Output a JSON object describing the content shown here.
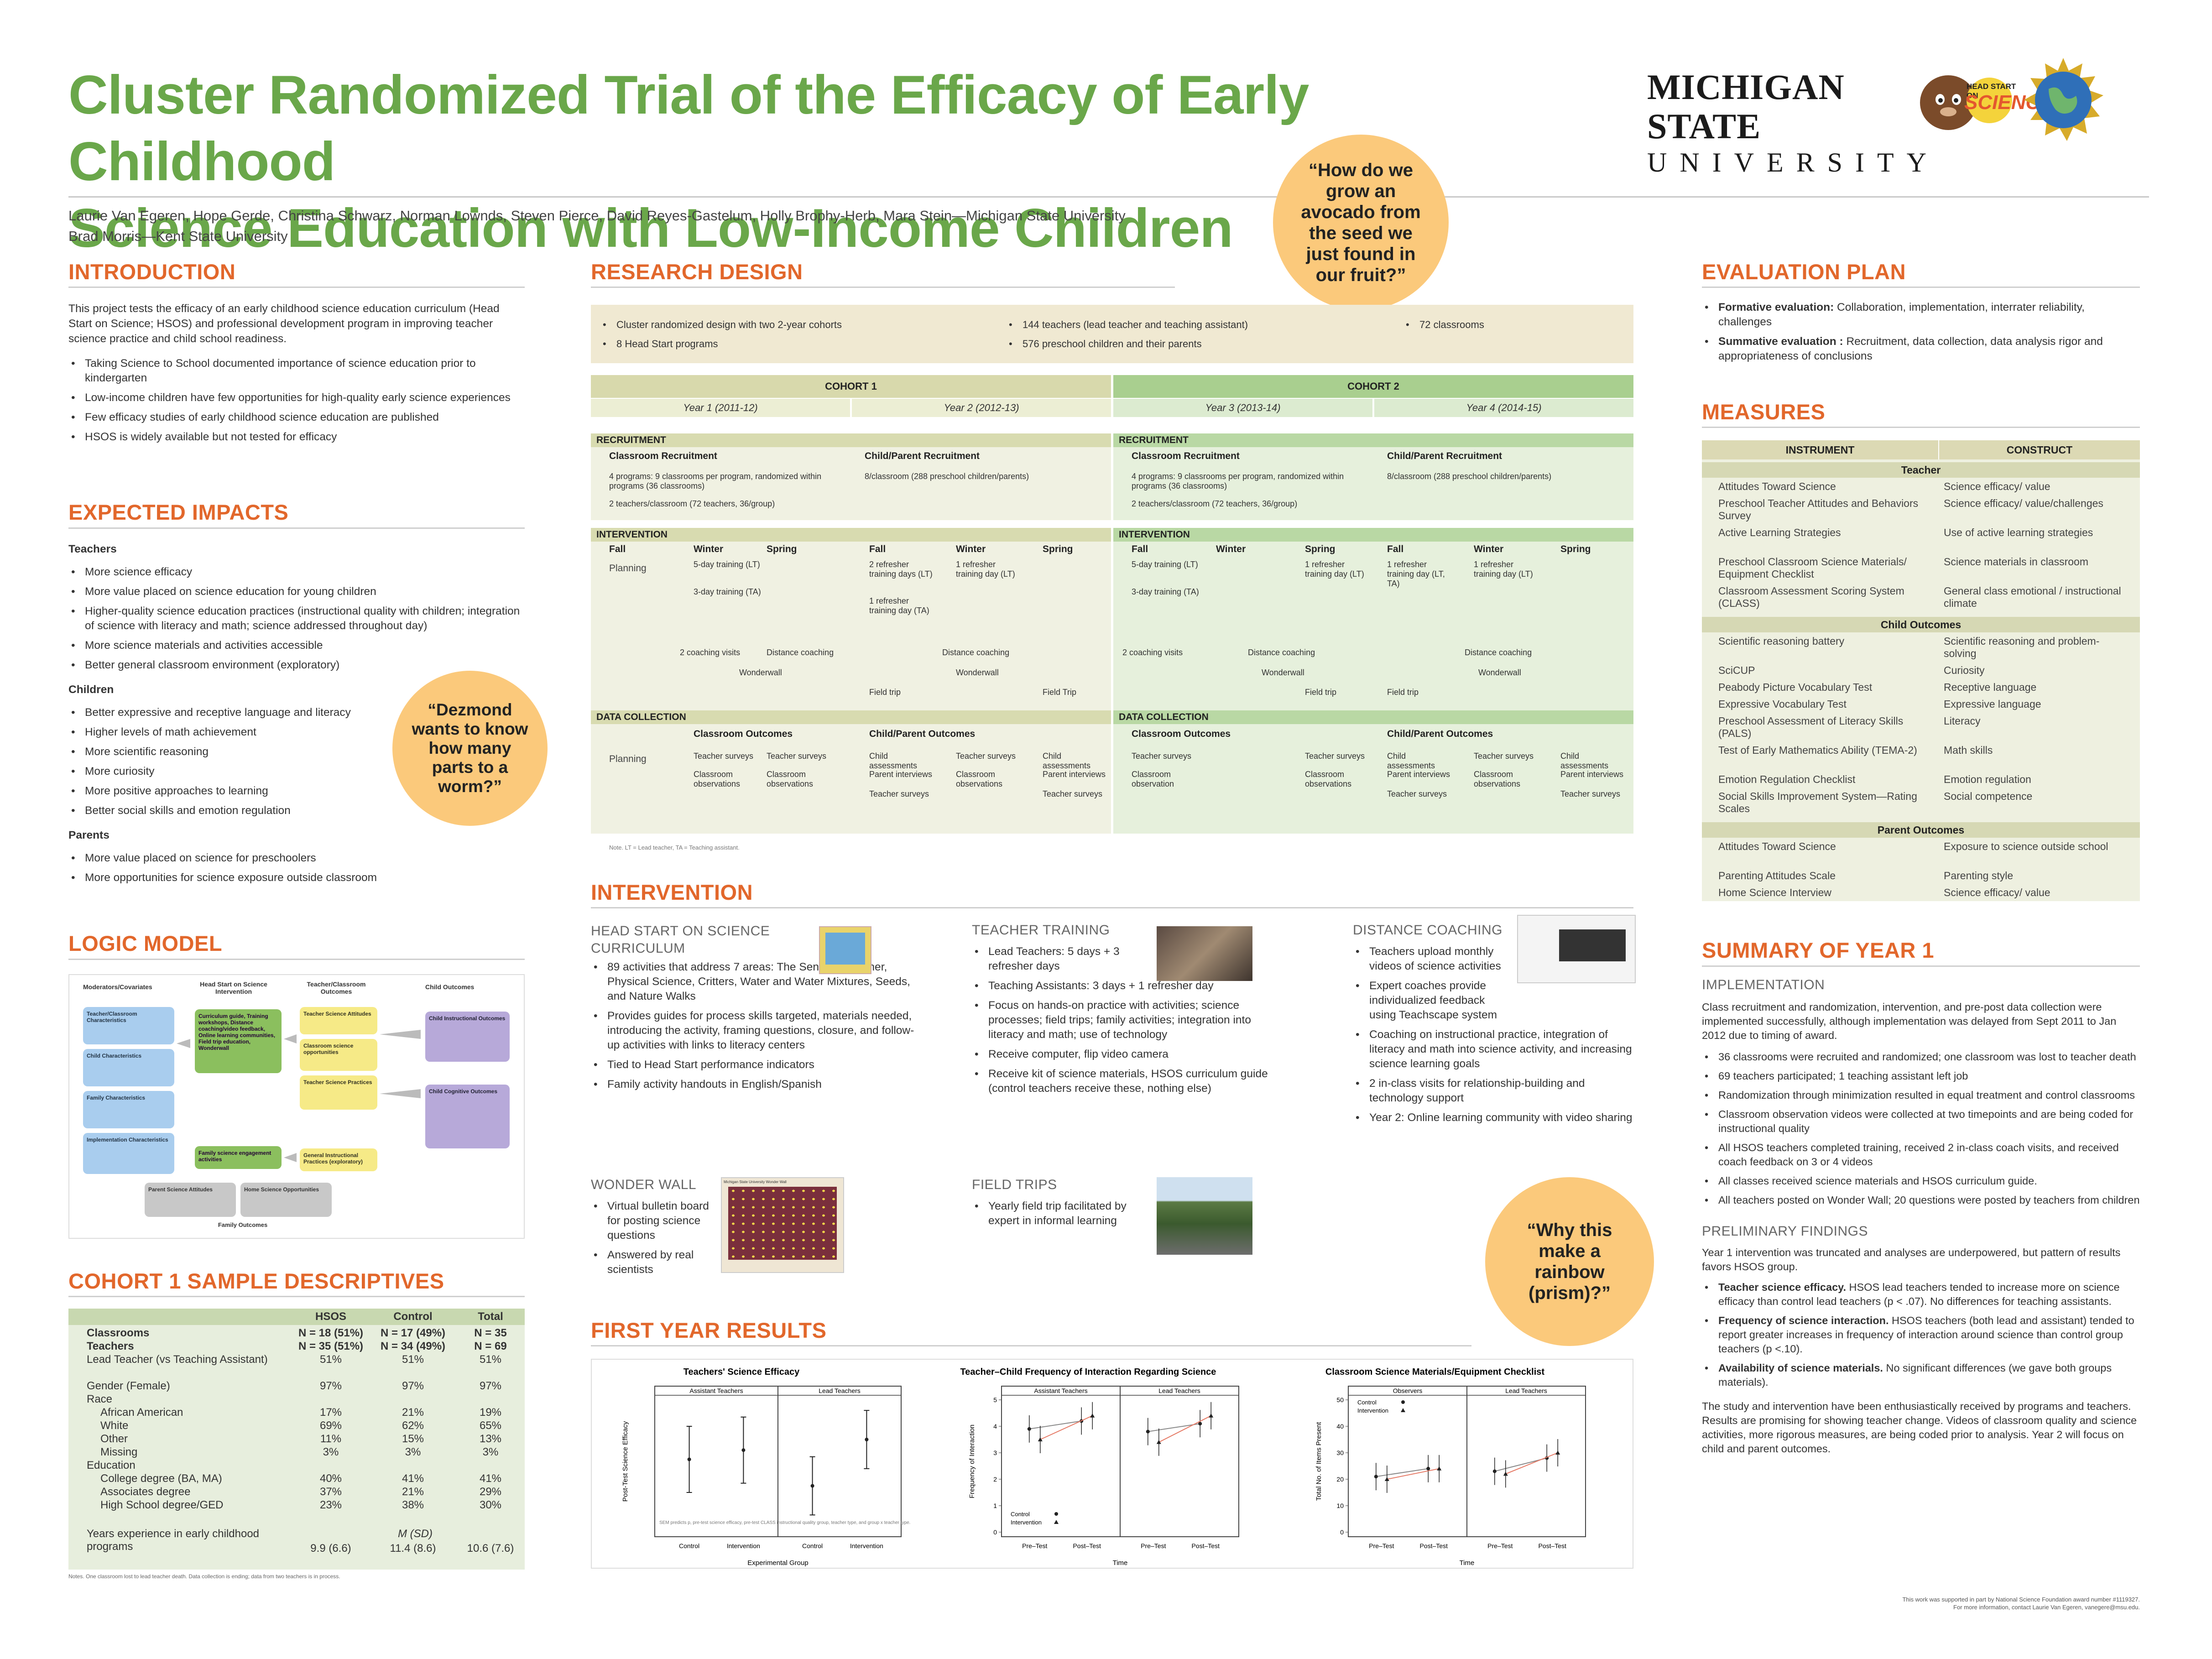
{
  "title": {
    "line1": "Cluster Randomized Trial of the Efficacy of Early Childhood",
    "line2": "Science Education with Low-Income Children"
  },
  "authors": {
    "line1": "Laurie Van Egeren, Hope Gerde, Christina Schwarz, Norman Lownds, Steven Pierce, David Reyes-Gastelum, Holly Brophy-Herb, Mara Stein—Michigan State University",
    "line2": "Brad Morris—Kent State University"
  },
  "logos": {
    "msu_line1": "MICHIGAN STATE",
    "msu_line2": "UNIVERSITY",
    "hsos_small": "HEAD START ON",
    "hsos_big": "SCIENCE"
  },
  "bubbles": {
    "avocado": "“How do we grow an avocado from the seed we just found in our fruit?”",
    "worm": "“Dezmond wants to know how many parts to a worm?”",
    "rainbow": "“Why this make a rainbow (prism)?”"
  },
  "intro": {
    "heading": "INTRODUCTION",
    "text": "This project tests the efficacy of an early childhood science education curriculum (Head Start on Science; HSOS) and professional development program in improving teacher science practice and child school readiness.",
    "bullets": [
      "Taking Science to School documented importance of science education prior to kindergarten",
      "Low-income children have few opportunities for high-quality early science experiences",
      "Few efficacy studies of early childhood science education are published",
      "HSOS is widely available but not tested for efficacy"
    ]
  },
  "impacts": {
    "heading": "EXPECTED IMPACTS",
    "teachers_label": "Teachers",
    "teachers": [
      "More science efficacy",
      "More value placed on science education for young children",
      "Higher-quality science education practices (instructional quality with children; integration of science with literacy and math; science addressed throughout day)",
      "More science materials and activities accessible",
      "Better general classroom environment (exploratory)"
    ],
    "children_label": "Children",
    "children": [
      "Better expressive and receptive language and literacy",
      "Higher levels of math achievement",
      "More scientific reasoning",
      "More curiosity",
      "More positive approaches to learning",
      "Better social skills and emotion regulation"
    ],
    "parents_label": "Parents",
    "parents": [
      "More value placed on science for preschoolers",
      "More opportunities for science exposure outside classroom"
    ]
  },
  "logic": {
    "heading": "LOGIC MODEL",
    "col1": "Moderators/Covariates",
    "col2": "Head Start on Science Intervention",
    "col3": "Teacher/Classroom Outcomes",
    "col4": "Child Outcomes",
    "m1": "Teacher/Classroom Characteristics",
    "m2": "Child Characteristics",
    "m3": "Family Characteristics",
    "m4": "Implementation Characteristics",
    "i1": "Curriculum guide, Training workshops, Distance coaching/video feedback, Online learning communities, Field trip education, Wonderwall",
    "i2": "Family science engagement activities",
    "t1": "Teacher Science Attitudes",
    "t2": "Classroom science opportunities",
    "t3": "Teacher Science Practices",
    "t4": "General Instructional Practices (exploratory)",
    "c1": "Child Instructional Outcomes",
    "c2": "Child Cognitive Outcomes",
    "p1": "Parent Science Attitudes",
    "p2": "Home Science Opportunities",
    "family": "Family Outcomes"
  },
  "cohort1": {
    "heading": "COHORT 1 SAMPLE DESCRIPTIVES",
    "headers": [
      "",
      "HSOS",
      "Control",
      "Total"
    ],
    "rows": [
      {
        "label": "Classrooms",
        "h": "N = 18 (51%)",
        "c": "N = 17 (49%)",
        "t": "N = 35",
        "bold": true
      },
      {
        "label": "Teachers",
        "h": "N = 35 (51%)",
        "c": "N = 34 (49%)",
        "t": "N = 69",
        "bold": true
      },
      {
        "label": "Lead Teacher (vs Teaching Assistant)",
        "h": "51%",
        "c": "51%",
        "t": "51%"
      },
      {
        "label": "Gender (Female)",
        "h": "97%",
        "c": "97%",
        "t": "97%"
      },
      {
        "label": "Race",
        "h": "",
        "c": "",
        "t": ""
      },
      {
        "label": "African American",
        "h": "17%",
        "c": "21%",
        "t": "19%",
        "indent": true
      },
      {
        "label": "White",
        "h": "69%",
        "c": "62%",
        "t": "65%",
        "indent": true
      },
      {
        "label": "Other",
        "h": "11%",
        "c": "15%",
        "t": "13%",
        "indent": true
      },
      {
        "label": "Missing",
        "h": "3%",
        "c": "3%",
        "t": "3%",
        "indent": true
      },
      {
        "label": "Education",
        "h": "",
        "c": "",
        "t": ""
      },
      {
        "label": "College degree (BA, MA)",
        "h": "40%",
        "c": "41%",
        "t": "41%",
        "indent": true
      },
      {
        "label": "Associates degree",
        "h": "37%",
        "c": "21%",
        "t": "29%",
        "indent": true
      },
      {
        "label": "High School degree/GED",
        "h": "23%",
        "c": "38%",
        "t": "30%",
        "indent": true
      }
    ],
    "msd": "M (SD)",
    "years_label": "Years experience in early childhood programs",
    "years": [
      "9.9 (6.6)",
      "11.4 (8.6)",
      "10.6 (7.6)"
    ],
    "note": "Notes. One classroom lost to lead teacher death. Data collection is ending; data from two teachers is in process."
  },
  "design": {
    "heading": "RESEARCH DESIGN",
    "bullets": [
      "Cluster randomized design with two 2-year cohorts",
      "8 Head Start programs",
      "144 teachers (lead teacher and teaching assistant)",
      "576 preschool children and their parents",
      "72 classrooms"
    ],
    "cohort1": "COHORT 1",
    "cohort2": "COHORT 2",
    "years": [
      "Year 1 (2011-12)",
      "Year 2 (2012-13)",
      "Year 3 (2013-14)",
      "Year 4 (2014-15)"
    ],
    "recruitment": "RECRUITMENT",
    "class_recruit": "Classroom Recruitment",
    "class_recruit2": "Classroom  Recruitment",
    "child_recruit": "Child/Parent Recruitment",
    "recruit_a": "4 programs: 9 classrooms per program, randomized within programs (36 classrooms)",
    "recruit_b": "2 teachers/classroom (72 teachers, 36/group)",
    "recruit_c": "8/classroom (288  preschool children/parents)",
    "intervention": "INTERVENTION",
    "seasons": [
      "Fall",
      "Winter",
      "Spring"
    ],
    "planning": "Planning",
    "t5day": "5-day training (LT)",
    "t3day": "3-day training (TA)",
    "refresh2": "2 refresher training days (LT)",
    "refresh1ta": "1 refresher training day (TA)",
    "refresh1lt": "1 refresher training day (LT)",
    "refresh1ltta": "1 refresher training day (LT, TA)",
    "coach2": "2 coaching visits",
    "distance": "Distance coaching",
    "wonderwall": "Wonderwall",
    "fieldtrip": "Field trip",
    "fieldtrip2": "Field Trip",
    "datacoll": "DATA COLLECTION",
    "class_out": "Classroom Outcomes",
    "child_out": "Child/Parent Outcomes",
    "tsurv": "Teacher surveys",
    "cobs": "Classroom observations",
    "cobs1": "Classroom observation",
    "cassess": "Child assessments",
    "pint": "Parent interviews",
    "note": "Note. LT = Lead teacher, TA = Teaching assistant."
  },
  "intervention": {
    "heading": "INTERVENTION",
    "hsos_title": "HEAD START ON SCIENCE CURRICULUM",
    "hsos": [
      "89 activities that address 7 areas: The Senses, Weather, Physical Science, Critters, Water and Water Mixtures, Seeds, and Nature Walks",
      "Provides guides for process skills targeted, materials needed, introducing the activity, framing questions, closure, and follow-up activities with links to literacy centers",
      "Tied to Head Start performance indicators",
      "Family activity handouts in English/Spanish"
    ],
    "tt_title": "TEACHER TRAINING",
    "tt": [
      "Lead Teachers: 5 days + 3 refresher days",
      "Teaching Assistants: 3 days + 1 refresher day",
      "Focus on hands-on practice with activities; science processes; field trips; family activities; integration into literacy and math; use of technology",
      "Receive computer, flip video camera",
      "Receive kit of science materials, HSOS curriculum guide (control teachers receive these, nothing else)"
    ],
    "dc_title": "DISTANCE COACHING",
    "dc": [
      "Teachers upload monthly videos of science activities",
      "Expert coaches provide individualized feedback using Teachscape system",
      "Coaching on instructional practice, integration of literacy and math into science activity, and increasing science learning goals",
      "2 in-class visits for relationship-building and technology support",
      "Year 2: Online learning community with video sharing"
    ],
    "ww_title": "WONDER WALL",
    "ww": [
      "Virtual bulletin board for posting science questions",
      "Answered by real scientists"
    ],
    "ww_caption": "Michigan State University Wonder Wall",
    "ft_title": "FIELD TRIPS",
    "ft": [
      "Yearly field trip facilitated by expert in informal learning"
    ]
  },
  "results": {
    "heading": "FIRST YEAR RESULTS"
  },
  "chart_data": [
    {
      "type": "scatter",
      "title": "Teachers' Science Efficacy",
      "panels": [
        "Assistant Teachers",
        "Lead Teachers"
      ],
      "categories": [
        "Control",
        "Intervention"
      ],
      "xlabel": "Experimental Group",
      "ylabel": "Post-Test Science Efficacy",
      "series": [
        {
          "panel": "Assistant Teachers",
          "values": [
            0.55,
            0.62
          ],
          "err": [
            0.25,
            0.25
          ]
        },
        {
          "panel": "Lead Teachers",
          "values": [
            0.35,
            0.7
          ],
          "err": [
            0.22,
            0.22
          ]
        }
      ],
      "ylim": [
        0,
        1
      ],
      "note": "SEM predicts p, pre-test science efficacy, pre-test CLASS instructional quality group, teacher type, and group x teacher type."
    },
    {
      "type": "line",
      "title": "Teacher–Child Frequency of Interaction Regarding Science",
      "panels": [
        "Assistant Teachers",
        "Lead Teachers"
      ],
      "categories": [
        "Pre–Test",
        "Post–Test"
      ],
      "xlabel": "Time",
      "ylabel": "Frequency of Interaction",
      "yticks": [
        0,
        1,
        2,
        3,
        4,
        5
      ],
      "ylim": [
        0,
        5
      ],
      "series": [
        {
          "name": "Control",
          "panel": "Assistant Teachers",
          "values": [
            3.9,
            4.2
          ]
        },
        {
          "name": "Intervention",
          "panel": "Assistant Teachers",
          "values": [
            3.5,
            4.4
          ]
        },
        {
          "name": "Control",
          "panel": "Lead Teachers",
          "values": [
            3.8,
            4.1
          ]
        },
        {
          "name": "Intervention",
          "panel": "Lead Teachers",
          "values": [
            3.4,
            4.4
          ]
        }
      ],
      "legend": [
        "Control",
        "Intervention"
      ]
    },
    {
      "type": "line",
      "title": "Classroom Science Materials/Equipment Checklist",
      "panels": [
        "Observers",
        "Lead Teachers"
      ],
      "categories": [
        "Pre–Test",
        "Post–Test"
      ],
      "xlabel": "Time",
      "ylabel": "Total No. of Items Present",
      "yticks": [
        0,
        10,
        20,
        30,
        40,
        50
      ],
      "ylim": [
        0,
        50
      ],
      "series": [
        {
          "name": "Control",
          "panel": "Observers",
          "values": [
            21,
            24
          ]
        },
        {
          "name": "Intervention",
          "panel": "Observers",
          "values": [
            20,
            24
          ]
        },
        {
          "name": "Control",
          "panel": "Lead Teachers",
          "values": [
            23,
            28
          ]
        },
        {
          "name": "Intervention",
          "panel": "Lead Teachers",
          "values": [
            22,
            30
          ]
        }
      ],
      "legend": [
        "Control",
        "Intervention"
      ]
    }
  ],
  "evaluation": {
    "heading": "EVALUATION PLAN",
    "items": [
      {
        "b": "Formative evaluation:",
        "t": " Collaboration, implementation, interrater reliability, challenges"
      },
      {
        "b": "Summative evaluation :",
        "t": " Recruitment, data collection, data analysis rigor and appropriateness of conclusions"
      }
    ]
  },
  "measures": {
    "heading": "MEASURES",
    "h1": "INSTRUMENT",
    "h2": "CONSTRUCT",
    "groups": [
      {
        "name": "Teacher",
        "rows": [
          [
            "Attitudes Toward Science",
            "Science efficacy/ value"
          ],
          [
            "Preschool Teacher Attitudes and Behaviors Survey",
            "Science efficacy/ value/challenges"
          ],
          [
            "Active Learning Strategies",
            "Use of active learning strategies"
          ],
          [
            "Preschool Classroom Science Materials/ Equipment Checklist",
            "Science materials in classroom"
          ],
          [
            "Classroom Assessment Scoring System (CLASS)",
            "General class emotional / instructional climate"
          ]
        ]
      },
      {
        "name": "Child Outcomes",
        "rows": [
          [
            "Scientific reasoning battery",
            "Scientific reasoning and problem-solving"
          ],
          [
            "SciCUP",
            "Curiosity"
          ],
          [
            "Peabody Picture Vocabulary Test",
            "Receptive language"
          ],
          [
            "Expressive Vocabulary Test",
            "Expressive language"
          ],
          [
            "Preschool Assessment of Literacy Skills (PALS)",
            "Literacy"
          ],
          [
            "Test of Early Mathematics Ability (TEMA-2)",
            "Math skills"
          ],
          [
            "Emotion Regulation Checklist",
            "Emotion regulation"
          ],
          [
            "Social Skills Improvement System—Rating Scales",
            "Social competence"
          ]
        ]
      },
      {
        "name": "Parent Outcomes",
        "rows": [
          [
            "Attitudes Toward Science",
            "Exposure to science outside school"
          ],
          [
            "Parenting Attitudes Scale",
            "Parenting style"
          ],
          [
            "Home Science Interview",
            "Science efficacy/ value"
          ]
        ]
      }
    ]
  },
  "summary": {
    "heading": "SUMMARY OF YEAR 1",
    "impl_title": "IMPLEMENTATION",
    "impl_text": "Class recruitment and randomization, intervention, and pre-post data collection were implemented successfully, although implementation was delayed from Sept 2011 to Jan 2012 due to timing of award.",
    "impl": [
      "36 classrooms were recruited and randomized; one classroom was lost to teacher death",
      "69 teachers participated; 1 teaching assistant left job",
      "Randomization through minimization resulted in equal treatment and control classrooms",
      "Classroom observation videos were collected at two timepoints and are being coded for instructional quality",
      "All HSOS teachers completed training, received 2 in-class coach visits, and received coach feedback on 3 or 4 videos",
      "All classes received science materials and HSOS curriculum guide.",
      "All teachers posted on Wonder Wall; 20 questions were posted by teachers from children"
    ],
    "prelim_title": "PRELIMINARY FINDINGS",
    "prelim_text": "Year 1 intervention was truncated and analyses are underpowered, but pattern of results favors HSOS group.",
    "prelim": [
      {
        "b": "Teacher science efficacy.",
        "t": " HSOS lead teachers tended to increase more on science efficacy than control lead teachers (p < .07).  No differences for teaching assistants."
      },
      {
        "b": "Frequency of science interaction.",
        "t": " HSOS teachers (both lead and assistant) tended to report greater increases in frequency of interaction around science than control group teachers (p <.10)."
      },
      {
        "b": "Availability of science materials.",
        "t": " No significant differences (we gave both groups materials)."
      }
    ],
    "closing": "The study and intervention have been enthusiastically received by programs and teachers. Results are promising for showing teacher change. Videos of classroom quality and science activities, more rigorous measures, are being coded prior to analysis. Year 2 will focus on child and parent outcomes.",
    "footer1": "This work was supported in part by National Science Foundation award number #1119327.",
    "footer2": "For more information, contact Laurie Van Egeren, vanegere@msu.edu."
  }
}
